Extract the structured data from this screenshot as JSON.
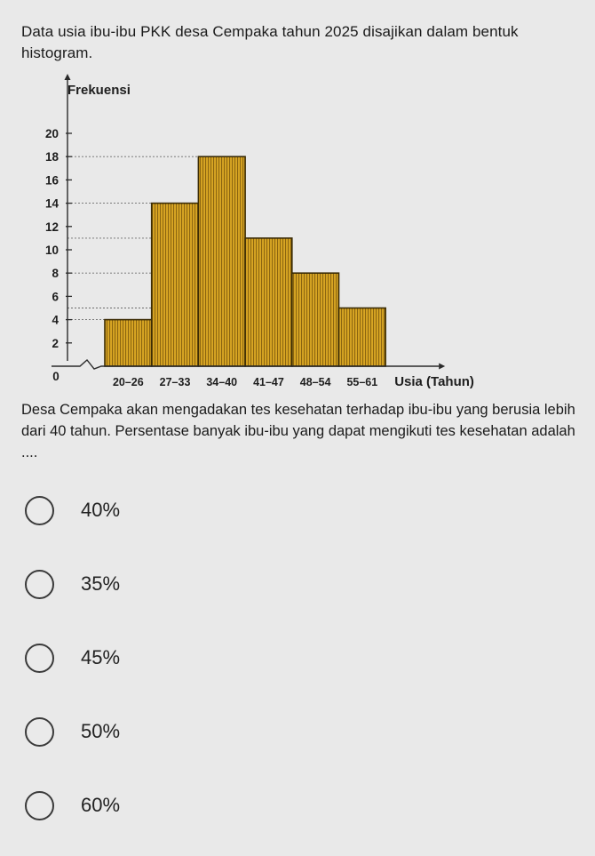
{
  "question": {
    "intro": "Data usia ibu-ibu PKK desa Cempaka tahun 2025 disajikan dalam bentuk histogram.",
    "body": "Desa Cempaka akan mengadakan tes kesehatan terhadap ibu-ibu yang berusia lebih dari 40 tahun. Persentase banyak ibu-ibu yang dapat mengikuti tes kesehatan adalah ...."
  },
  "chart_data": {
    "type": "bar",
    "ylabel": "Frekuensi",
    "xlabel": "Usia (Tahun)",
    "categories": [
      "20–26",
      "27–33",
      "34–40",
      "41–47",
      "48–54",
      "55–61"
    ],
    "values": [
      4,
      14,
      18,
      11,
      8,
      5
    ],
    "yticks": [
      2,
      4,
      6,
      8,
      10,
      12,
      14,
      16,
      18,
      20
    ],
    "origin_label": "0",
    "ylim": [
      0,
      20
    ],
    "bar_color": "#d8a521",
    "grid": false
  },
  "options": [
    {
      "label": "40%"
    },
    {
      "label": "35%"
    },
    {
      "label": "45%"
    },
    {
      "label": "50%"
    },
    {
      "label": "60%"
    }
  ]
}
